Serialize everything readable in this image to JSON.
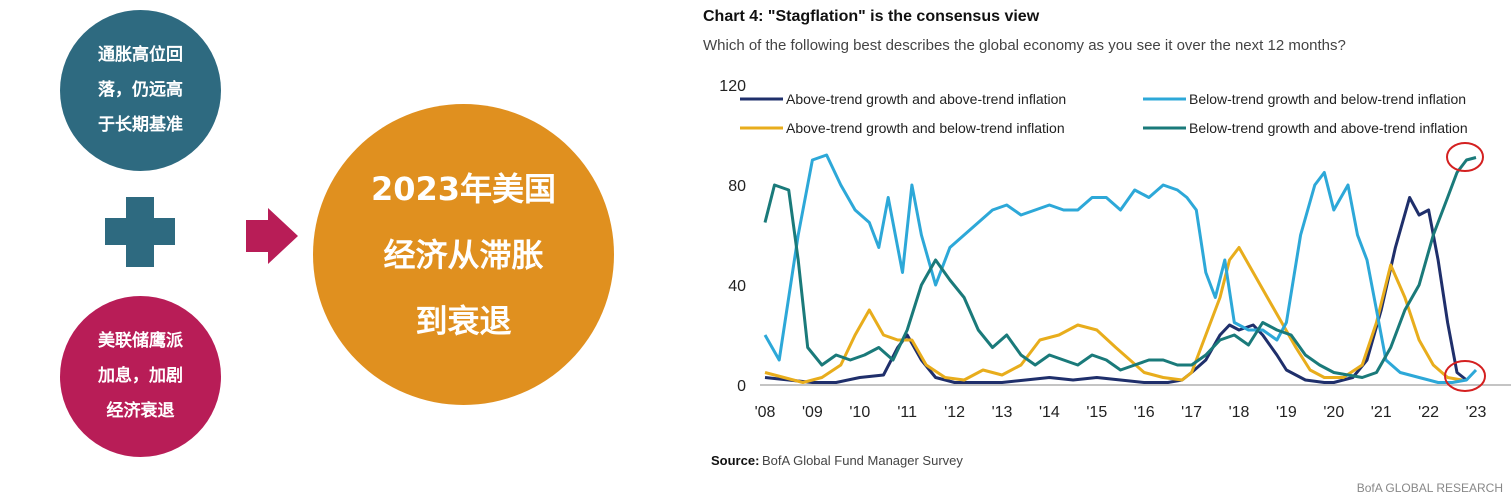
{
  "left_panel": {
    "top_circle": "通胀高位回\n落，仍远高\n于长期基准",
    "bottom_circle": "美联储鹰派\n加息，加剧\n经济衰退",
    "main_circle": "2023年美国\n经济从滞胀\n到衰退",
    "colors": {
      "teal": "#2e6a80",
      "crimson": "#b81d57",
      "orange": "#e0901f"
    }
  },
  "chart_data": {
    "type": "line",
    "title": "Chart 4: \"Stagflation\" is the consensus view",
    "subtitle": "Which of the following best describes the global economy as you see it over the next 12 months?",
    "ylim": [
      0,
      120
    ],
    "yticks": [
      "0",
      "40",
      "80",
      "120"
    ],
    "xlim": [
      2008,
      2023.2
    ],
    "xticks": [
      {
        "value": 2008,
        "label": "'08"
      },
      {
        "value": 2009,
        "label": "'09"
      },
      {
        "value": 2010,
        "label": "'10"
      },
      {
        "value": 2011,
        "label": "'11"
      },
      {
        "value": 2012,
        "label": "'12"
      },
      {
        "value": 2013,
        "label": "'13"
      },
      {
        "value": 2014,
        "label": "'14"
      },
      {
        "value": 2015,
        "label": "'15"
      },
      {
        "value": 2016,
        "label": "'16"
      },
      {
        "value": 2017,
        "label": "'17"
      },
      {
        "value": 2018,
        "label": "'18"
      },
      {
        "value": 2019,
        "label": "'19"
      },
      {
        "value": 2020,
        "label": "'20"
      },
      {
        "value": 2021,
        "label": "'21"
      },
      {
        "value": 2022,
        "label": "'22"
      },
      {
        "value": 2023,
        "label": "'23"
      }
    ],
    "legend_placement": "top",
    "series": [
      {
        "name": "Above-trend growth and above-trend inflation",
        "color": "#1f2f6b",
        "points": [
          [
            2008,
            3
          ],
          [
            2008.5,
            2
          ],
          [
            2009,
            1
          ],
          [
            2009.5,
            1
          ],
          [
            2010,
            3
          ],
          [
            2010.5,
            4
          ],
          [
            2010.8,
            15
          ],
          [
            2011,
            20
          ],
          [
            2011.3,
            10
          ],
          [
            2011.6,
            3
          ],
          [
            2012,
            1
          ],
          [
            2012.5,
            1
          ],
          [
            2013,
            1
          ],
          [
            2013.5,
            2
          ],
          [
            2014,
            3
          ],
          [
            2014.5,
            2
          ],
          [
            2015,
            3
          ],
          [
            2015.5,
            2
          ],
          [
            2016,
            1
          ],
          [
            2016.5,
            1
          ],
          [
            2016.8,
            2
          ],
          [
            2017,
            5
          ],
          [
            2017.3,
            10
          ],
          [
            2017.6,
            20
          ],
          [
            2017.8,
            24
          ],
          [
            2018,
            22
          ],
          [
            2018.3,
            24
          ],
          [
            2018.5,
            20
          ],
          [
            2018.8,
            12
          ],
          [
            2019,
            6
          ],
          [
            2019.4,
            2
          ],
          [
            2019.8,
            1
          ],
          [
            2020,
            1
          ],
          [
            2020.4,
            3
          ],
          [
            2020.7,
            10
          ],
          [
            2021,
            30
          ],
          [
            2021.3,
            55
          ],
          [
            2021.6,
            75
          ],
          [
            2021.8,
            68
          ],
          [
            2022,
            70
          ],
          [
            2022.2,
            50
          ],
          [
            2022.4,
            25
          ],
          [
            2022.6,
            5
          ],
          [
            2022.8,
            2
          ]
        ]
      },
      {
        "name": "Above-trend growth and below-trend inflation",
        "color": "#e8ad1c",
        "points": [
          [
            2008,
            5
          ],
          [
            2008.4,
            3
          ],
          [
            2008.8,
            1
          ],
          [
            2009.2,
            3
          ],
          [
            2009.6,
            8
          ],
          [
            2009.9,
            20
          ],
          [
            2010.2,
            30
          ],
          [
            2010.5,
            20
          ],
          [
            2010.8,
            18
          ],
          [
            2011.1,
            18
          ],
          [
            2011.4,
            8
          ],
          [
            2011.8,
            3
          ],
          [
            2012.2,
            2
          ],
          [
            2012.6,
            6
          ],
          [
            2013,
            4
          ],
          [
            2013.4,
            8
          ],
          [
            2013.8,
            18
          ],
          [
            2014.2,
            20
          ],
          [
            2014.6,
            24
          ],
          [
            2015,
            22
          ],
          [
            2015.4,
            15
          ],
          [
            2015.7,
            10
          ],
          [
            2016,
            5
          ],
          [
            2016.4,
            3
          ],
          [
            2016.8,
            2
          ],
          [
            2017,
            5
          ],
          [
            2017.3,
            20
          ],
          [
            2017.6,
            35
          ],
          [
            2017.8,
            50
          ],
          [
            2018,
            55
          ],
          [
            2018.3,
            45
          ],
          [
            2018.6,
            35
          ],
          [
            2018.9,
            25
          ],
          [
            2019.2,
            15
          ],
          [
            2019.5,
            6
          ],
          [
            2019.8,
            3
          ],
          [
            2020.2,
            3
          ],
          [
            2020.6,
            8
          ],
          [
            2020.9,
            25
          ],
          [
            2021.2,
            48
          ],
          [
            2021.5,
            35
          ],
          [
            2021.8,
            18
          ],
          [
            2022.1,
            8
          ],
          [
            2022.4,
            3
          ],
          [
            2022.7,
            2
          ]
        ]
      },
      {
        "name": "Below-trend growth and below-trend inflation",
        "color": "#2da8d8",
        "points": [
          [
            2008,
            20
          ],
          [
            2008.3,
            10
          ],
          [
            2008.7,
            60
          ],
          [
            2009,
            90
          ],
          [
            2009.3,
            92
          ],
          [
            2009.6,
            80
          ],
          [
            2009.9,
            70
          ],
          [
            2010.2,
            65
          ],
          [
            2010.4,
            55
          ],
          [
            2010.6,
            75
          ],
          [
            2010.9,
            45
          ],
          [
            2011.1,
            80
          ],
          [
            2011.3,
            60
          ],
          [
            2011.6,
            40
          ],
          [
            2011.9,
            55
          ],
          [
            2012.2,
            60
          ],
          [
            2012.5,
            65
          ],
          [
            2012.8,
            70
          ],
          [
            2013.1,
            72
          ],
          [
            2013.4,
            68
          ],
          [
            2013.7,
            70
          ],
          [
            2014,
            72
          ],
          [
            2014.3,
            70
          ],
          [
            2014.6,
            70
          ],
          [
            2014.9,
            75
          ],
          [
            2015.2,
            75
          ],
          [
            2015.5,
            70
          ],
          [
            2015.8,
            78
          ],
          [
            2016.1,
            75
          ],
          [
            2016.4,
            80
          ],
          [
            2016.7,
            78
          ],
          [
            2016.9,
            75
          ],
          [
            2017.1,
            70
          ],
          [
            2017.3,
            45
          ],
          [
            2017.5,
            35
          ],
          [
            2017.7,
            50
          ],
          [
            2017.9,
            25
          ],
          [
            2018.2,
            22
          ],
          [
            2018.5,
            22
          ],
          [
            2018.8,
            18
          ],
          [
            2019,
            25
          ],
          [
            2019.3,
            60
          ],
          [
            2019.6,
            80
          ],
          [
            2019.8,
            85
          ],
          [
            2020,
            70
          ],
          [
            2020.3,
            80
          ],
          [
            2020.5,
            60
          ],
          [
            2020.7,
            50
          ],
          [
            2020.9,
            30
          ],
          [
            2021.1,
            10
          ],
          [
            2021.4,
            5
          ],
          [
            2021.8,
            3
          ],
          [
            2022.2,
            1
          ],
          [
            2022.5,
            1
          ],
          [
            2022.8,
            2
          ],
          [
            2023,
            6
          ]
        ]
      },
      {
        "name": "Below-trend growth and above-trend inflation",
        "color": "#1a7a7a",
        "points": [
          [
            2008,
            65
          ],
          [
            2008.2,
            80
          ],
          [
            2008.5,
            78
          ],
          [
            2008.7,
            50
          ],
          [
            2008.9,
            15
          ],
          [
            2009.2,
            8
          ],
          [
            2009.5,
            12
          ],
          [
            2009.8,
            10
          ],
          [
            2010.1,
            12
          ],
          [
            2010.4,
            15
          ],
          [
            2010.7,
            10
          ],
          [
            2011,
            22
          ],
          [
            2011.3,
            40
          ],
          [
            2011.6,
            50
          ],
          [
            2011.9,
            42
          ],
          [
            2012.2,
            35
          ],
          [
            2012.5,
            22
          ],
          [
            2012.8,
            15
          ],
          [
            2013.1,
            20
          ],
          [
            2013.4,
            12
          ],
          [
            2013.7,
            8
          ],
          [
            2014,
            12
          ],
          [
            2014.3,
            10
          ],
          [
            2014.6,
            8
          ],
          [
            2014.9,
            12
          ],
          [
            2015.2,
            10
          ],
          [
            2015.5,
            6
          ],
          [
            2015.8,
            8
          ],
          [
            2016.1,
            10
          ],
          [
            2016.4,
            10
          ],
          [
            2016.7,
            8
          ],
          [
            2017,
            8
          ],
          [
            2017.3,
            12
          ],
          [
            2017.6,
            18
          ],
          [
            2017.9,
            20
          ],
          [
            2018.2,
            16
          ],
          [
            2018.5,
            25
          ],
          [
            2018.8,
            22
          ],
          [
            2019.1,
            20
          ],
          [
            2019.4,
            12
          ],
          [
            2019.7,
            8
          ],
          [
            2020,
            5
          ],
          [
            2020.3,
            4
          ],
          [
            2020.6,
            3
          ],
          [
            2020.9,
            5
          ],
          [
            2021.2,
            15
          ],
          [
            2021.5,
            30
          ],
          [
            2021.8,
            40
          ],
          [
            2022.1,
            60
          ],
          [
            2022.4,
            75
          ],
          [
            2022.6,
            85
          ],
          [
            2022.8,
            90
          ],
          [
            2023,
            91
          ]
        ]
      }
    ],
    "source_label": "Source:",
    "source_text": "BofA Global Fund Manager Survey",
    "brand": "BofA GLOBAL RESEARCH"
  }
}
